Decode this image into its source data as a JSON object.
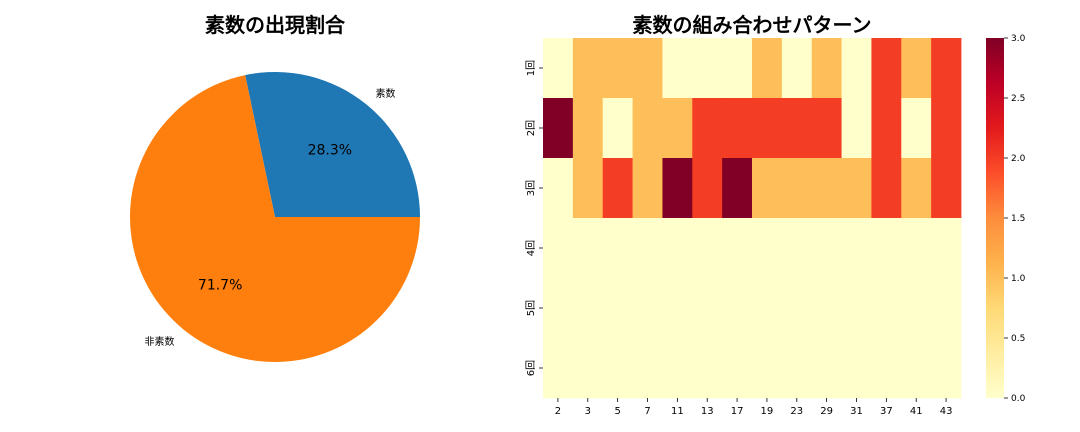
{
  "chart_data": [
    {
      "type": "pie",
      "title": "素数の出現割合",
      "labels": [
        "素数",
        "非素数"
      ],
      "values": [
        28.3,
        71.7
      ],
      "autopct": [
        "28.3%",
        "71.7%"
      ],
      "colors": [
        "#1f77b4",
        "#ff7f0e"
      ]
    },
    {
      "type": "heatmap",
      "title": "素数の組み合わせパターン",
      "x_labels": [
        "2",
        "3",
        "5",
        "7",
        "11",
        "13",
        "17",
        "19",
        "23",
        "29",
        "31",
        "37",
        "41",
        "43"
      ],
      "y_labels": [
        "1回",
        "2回",
        "3回",
        "4回",
        "5回",
        "6回"
      ],
      "values": [
        [
          0,
          1,
          1,
          1,
          0,
          0,
          0,
          1,
          0,
          1,
          0,
          2,
          1,
          2
        ],
        [
          3,
          1,
          0,
          1,
          1,
          2,
          2,
          2,
          2,
          2,
          0,
          2,
          0,
          2
        ],
        [
          0,
          1,
          2,
          1,
          3,
          2,
          3,
          1,
          1,
          1,
          1,
          2,
          1,
          2
        ],
        [
          0,
          0,
          0,
          0,
          0,
          0,
          0,
          0,
          0,
          0,
          0,
          0,
          0,
          0
        ],
        [
          0,
          0,
          0,
          0,
          0,
          0,
          0,
          0,
          0,
          0,
          0,
          0,
          0,
          0
        ],
        [
          0,
          0,
          0,
          0,
          0,
          0,
          0,
          0,
          0,
          0,
          0,
          0,
          0,
          0
        ]
      ],
      "colormap": "YlOrRd",
      "colorbar_range": [
        0,
        3
      ],
      "colorbar_ticks": [
        "0.0",
        "0.5",
        "1.0",
        "1.5",
        "2.0",
        "2.5",
        "3.0"
      ]
    }
  ]
}
